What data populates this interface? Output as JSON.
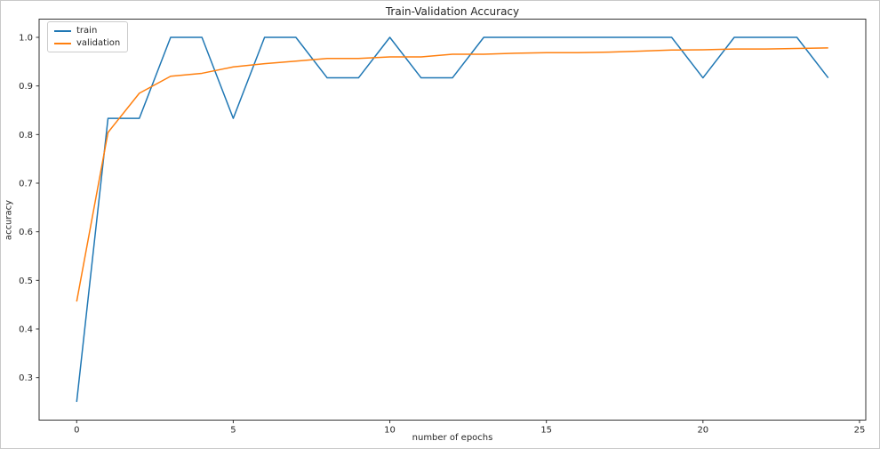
{
  "figure": {
    "title": "Train-Validation Accuracy",
    "xlabel": "number of epochs",
    "ylabel": "accuracy"
  },
  "chart_data": {
    "type": "line",
    "title": "Train-Validation Accuracy",
    "xlabel": "number of epochs",
    "ylabel": "accuracy",
    "x": [
      0,
      1,
      2,
      3,
      4,
      5,
      6,
      7,
      8,
      9,
      10,
      11,
      12,
      13,
      14,
      15,
      16,
      17,
      18,
      19,
      20,
      21,
      22,
      23,
      24
    ],
    "series": [
      {
        "name": "train",
        "color": "#1f77b4",
        "values": [
          0.25,
          0.8333,
          0.8333,
          1.0,
          1.0,
          0.8333,
          1.0,
          1.0,
          0.9167,
          0.9167,
          1.0,
          0.9167,
          0.9167,
          1.0,
          1.0,
          1.0,
          1.0,
          1.0,
          1.0,
          1.0,
          0.9167,
          1.0,
          1.0,
          1.0,
          0.9167
        ]
      },
      {
        "name": "validation",
        "color": "#ff7f0e",
        "values": [
          0.4565,
          0.8043,
          0.885,
          0.92,
          0.926,
          0.9391,
          0.9457,
          0.9511,
          0.9565,
          0.9565,
          0.9598,
          0.9598,
          0.9652,
          0.9652,
          0.9674,
          0.9685,
          0.9685,
          0.9696,
          0.9717,
          0.9739,
          0.9743,
          0.9761,
          0.9761,
          0.9772,
          0.9783
        ]
      }
    ],
    "xlim": [
      -1.2,
      25.2
    ],
    "ylim": [
      0.2125,
      1.0375
    ],
    "xticks": [
      0,
      5,
      10,
      15,
      20,
      25
    ],
    "yticks": [
      0.3,
      0.4,
      0.5,
      0.6,
      0.7,
      0.8,
      0.9,
      1.0
    ],
    "grid": false,
    "legend_position": "upper left",
    "axis_color": "#333333",
    "tick_label_color": "#262626",
    "background": "#ffffff"
  }
}
